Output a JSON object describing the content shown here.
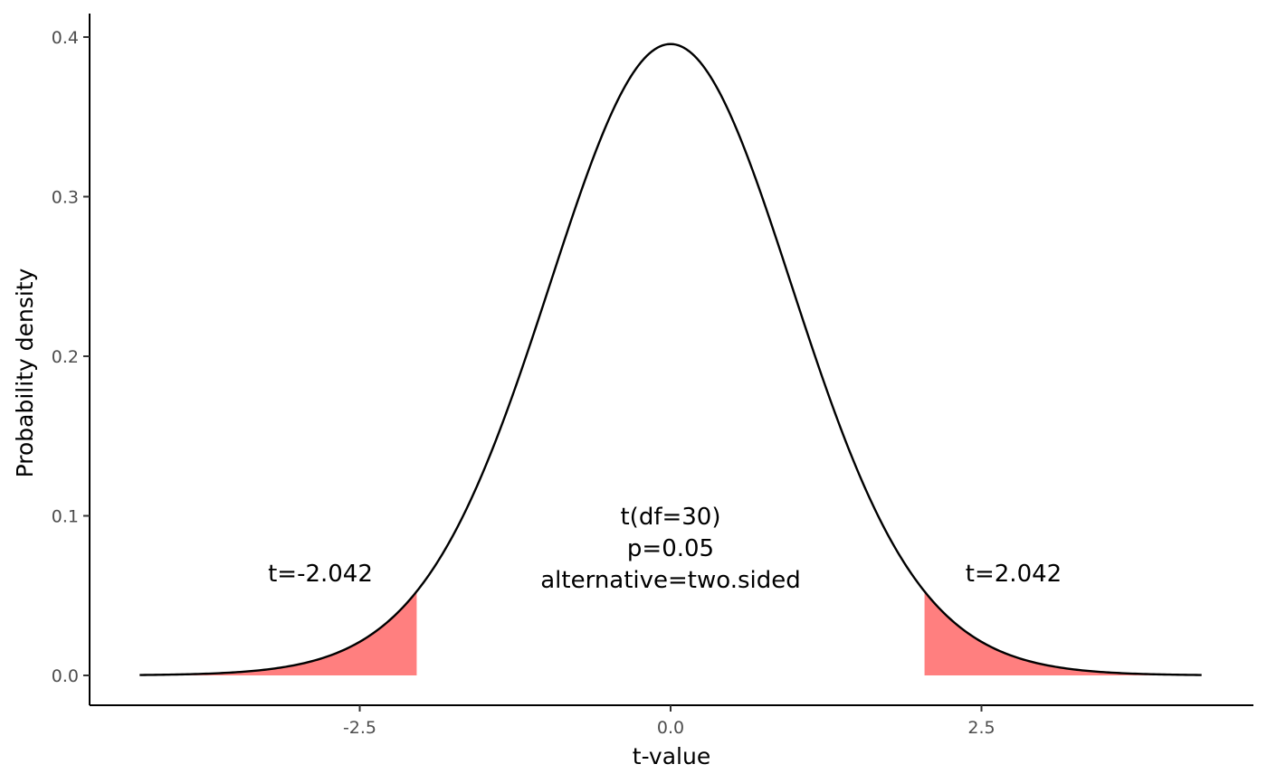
{
  "chart_data": {
    "type": "area",
    "distribution": "t",
    "df": 30,
    "xlabel": "t-value",
    "ylabel": "Probability density",
    "xlim": [
      -4.4,
      4.4
    ],
    "ylim": [
      0,
      0.4
    ],
    "x_ticks": [
      -2.5,
      0.0,
      2.5
    ],
    "x_tick_labels": [
      "-2.5",
      "0.0",
      "2.5"
    ],
    "y_ticks": [
      0.0,
      0.1,
      0.2,
      0.3,
      0.4
    ],
    "y_tick_labels": [
      "0.0",
      "0.1",
      "0.2",
      "0.3",
      "0.4"
    ],
    "curve_range": [
      -4.27,
      4.27
    ],
    "peak_density": 0.3956,
    "critical_values": [
      -2.042,
      2.042
    ],
    "shaded_regions": [
      {
        "from": -4.27,
        "to": -2.042
      },
      {
        "from": 2.042,
        "to": 4.27
      }
    ],
    "annotations": {
      "left_critical": "t=-2.042",
      "right_critical": "t=2.042",
      "center_lines": [
        "t(df=30)",
        "p=0.05",
        "alternative=two.sided"
      ]
    },
    "colors": {
      "curve": "#000000",
      "shade": "#ff7f7f",
      "axis": "#000000",
      "tick_text": "#4d4d4d"
    },
    "grid": false,
    "legend": "none"
  }
}
